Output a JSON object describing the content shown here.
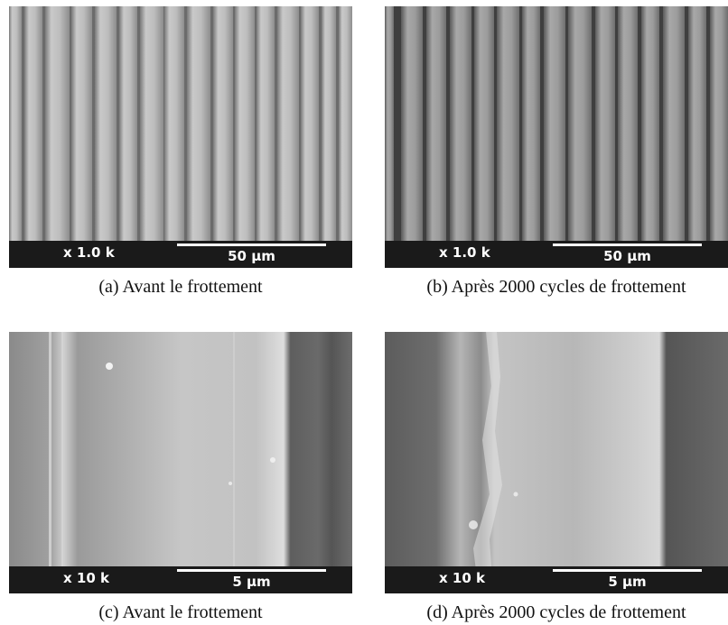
{
  "panels": [
    {
      "id": "a",
      "magnification": "x 1.0 k",
      "scale": "50 µm",
      "caption": "(a) Avant le frottement"
    },
    {
      "id": "b",
      "magnification": "x 1.0 k",
      "scale": "50 µm",
      "caption": "(b) Après 2000 cycles de frottement"
    },
    {
      "id": "c",
      "magnification": "x 10 k",
      "scale": "5 µm",
      "caption": "(c) Avant le frottement"
    },
    {
      "id": "d",
      "magnification": "x 10 k",
      "scale": "5 µm",
      "caption": "(d) Après 2000 cycles de frottement"
    }
  ]
}
